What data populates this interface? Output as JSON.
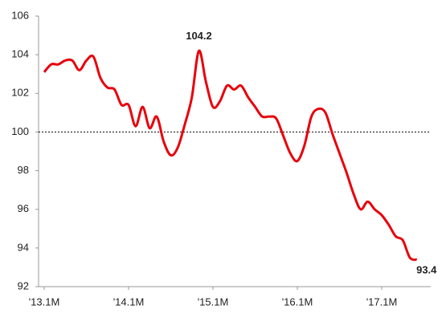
{
  "chart_data": {
    "type": "line",
    "categories": [
      "'13.1M",
      null,
      null,
      null,
      null,
      null,
      null,
      null,
      null,
      null,
      null,
      null,
      "'14.1M",
      null,
      null,
      null,
      null,
      null,
      null,
      null,
      null,
      null,
      null,
      null,
      "'15.1M",
      null,
      null,
      null,
      null,
      null,
      null,
      null,
      null,
      null,
      null,
      null,
      "'16.1M",
      null,
      null,
      null,
      null,
      null,
      null,
      null,
      null,
      null,
      null,
      null,
      "'17.1M",
      null,
      null,
      null,
      null,
      null
    ],
    "values": [
      103.1,
      103.5,
      103.5,
      103.7,
      103.7,
      103.2,
      103.7,
      103.9,
      102.8,
      102.3,
      102.2,
      101.4,
      101.4,
      100.3,
      101.3,
      100.2,
      100.8,
      99.5,
      98.8,
      99.2,
      100.4,
      101.8,
      104.2,
      102.6,
      101.3,
      101.6,
      102.4,
      102.2,
      102.4,
      101.8,
      101.3,
      100.8,
      100.8,
      100.7,
      99.8,
      98.9,
      98.5,
      99.3,
      100.8,
      101.2,
      101.0,
      99.9,
      98.9,
      97.9,
      96.8,
      96.0,
      96.4,
      96.0,
      95.7,
      95.2,
      94.6,
      94.4,
      93.5,
      93.4
    ],
    "color": "#e8000b",
    "annotations": [
      "104.2",
      "93.4"
    ],
    "reference_line": 100,
    "ylim": [
      92,
      106
    ],
    "yticks": [
      92,
      94,
      96,
      98,
      100,
      102,
      104,
      106
    ]
  }
}
